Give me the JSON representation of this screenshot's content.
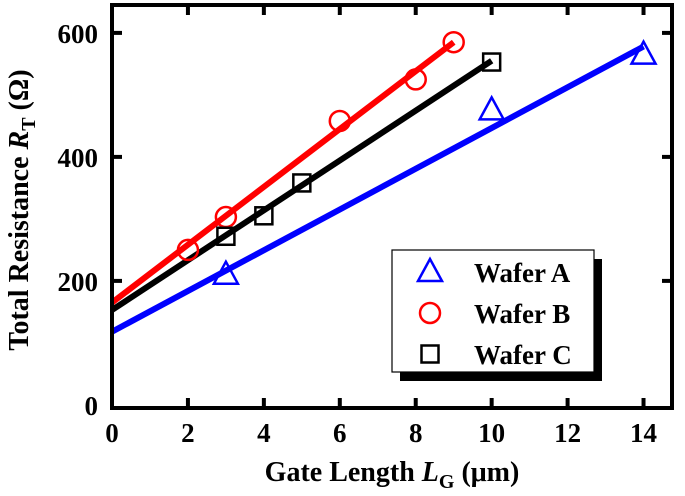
{
  "chart_data": {
    "type": "scatter",
    "xlabel": "Gate Length L_G (μm)",
    "xlabel_parts": {
      "main": "Gate Length ",
      "var": "L",
      "sub": "G",
      "unit": " (μm)"
    },
    "ylabel": "Total Resistance R_T (Ω)",
    "ylabel_parts": {
      "main": "Total Resistance ",
      "var": "R",
      "sub": "T",
      "unit": " (Ω)"
    },
    "xlim": [
      0,
      14.75
    ],
    "ylim": [
      -5,
      645
    ],
    "xticks": [
      0,
      2,
      4,
      6,
      8,
      10,
      12,
      14
    ],
    "yticks": [
      0,
      200,
      400,
      600
    ],
    "grid": false,
    "legend_placement": "bottom-right",
    "series": [
      {
        "name": "Wafer A",
        "marker": "triangle",
        "color": "#0000ff",
        "points": [
          [
            3,
            210
          ],
          [
            10,
            475
          ],
          [
            14,
            565
          ]
        ],
        "fit": [
          [
            0,
            118
          ],
          [
            14,
            578
          ]
        ]
      },
      {
        "name": "Wafer B",
        "marker": "circle",
        "color": "#ff0000",
        "points": [
          [
            2,
            250
          ],
          [
            3,
            303
          ],
          [
            6,
            458
          ],
          [
            8,
            525
          ],
          [
            9,
            585
          ]
        ],
        "fit": [
          [
            0,
            165
          ],
          [
            9,
            585
          ]
        ]
      },
      {
        "name": "Wafer C",
        "marker": "square",
        "color": "#000000",
        "points": [
          [
            3,
            272
          ],
          [
            4,
            305
          ],
          [
            5,
            358
          ],
          [
            10,
            553
          ]
        ],
        "fit": [
          [
            0,
            153
          ],
          [
            10,
            555
          ]
        ]
      }
    ]
  }
}
